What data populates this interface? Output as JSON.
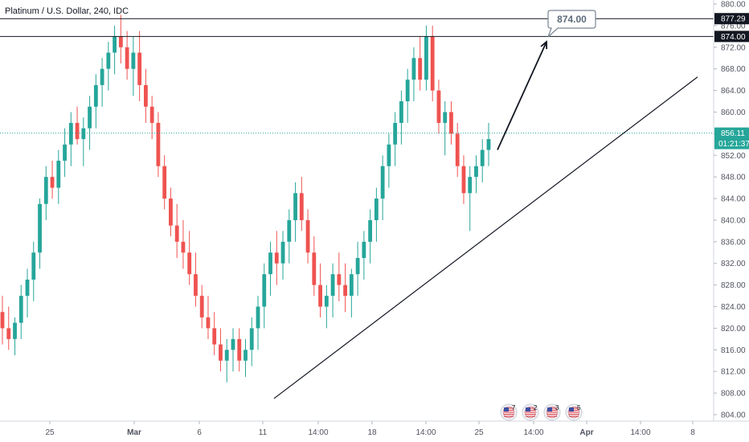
{
  "symbol": {
    "title": "Platinum / U.S. Dollar, 240, IDC"
  },
  "colors": {
    "up": "#26a69a",
    "down": "#ef5350",
    "price_line": "#26a69a",
    "annotation": "#6b7b8c"
  },
  "price_axis": {
    "ticks": [
      "880.00",
      "876.00",
      "872.00",
      "868.00",
      "864.00",
      "860.00",
      "856.00",
      "852.00",
      "848.00",
      "844.00",
      "840.00",
      "836.00",
      "832.00",
      "828.00",
      "824.00",
      "820.00",
      "816.00",
      "812.00",
      "808.00",
      "804.00"
    ],
    "current_price_label": "856.11",
    "countdown_label": "01:21:37",
    "level_labels": [
      "877.29",
      "874.00"
    ]
  },
  "time_axis": {
    "ticks": [
      "25",
      "Mar",
      "6",
      "11",
      "14:00",
      "18",
      "14:00",
      "25",
      "14:00",
      "Apr",
      "14:00",
      "8"
    ]
  },
  "annotation": {
    "target_label": "874.00"
  },
  "events": {
    "flags": [
      {
        "flag": "us-flag",
        "count": "7"
      },
      {
        "flag": "us-flag",
        "count": "2"
      },
      {
        "flag": "us-flag",
        "count": "3"
      },
      {
        "flag": "us-flag",
        "count": "5"
      }
    ]
  },
  "chart_data": {
    "type": "candlestick",
    "title": "Platinum / U.S. Dollar, 240, IDC",
    "ylim": [
      802,
      882
    ],
    "current_price": 856.11,
    "horizontal_levels": [
      877.29,
      874.0
    ],
    "trendline": {
      "from": 807,
      "to": 866.5
    },
    "arrow": {
      "from": 853,
      "to": 873
    },
    "candles": [
      [
        823,
        826,
        817,
        820
      ],
      [
        820,
        824,
        816,
        818
      ],
      [
        818,
        822,
        815,
        821
      ],
      [
        821,
        828,
        818,
        826
      ],
      [
        826,
        831,
        822,
        829
      ],
      [
        829,
        836,
        825,
        834
      ],
      [
        834,
        844,
        831,
        843
      ],
      [
        843,
        850,
        840,
        848
      ],
      [
        848,
        851,
        844,
        846
      ],
      [
        846,
        853,
        843,
        851
      ],
      [
        851,
        857,
        848,
        854
      ],
      [
        854,
        860,
        850,
        858
      ],
      [
        858,
        861,
        854,
        855
      ],
      [
        855,
        859,
        850,
        857
      ],
      [
        857,
        863,
        853,
        861
      ],
      [
        861,
        867,
        857,
        865
      ],
      [
        865,
        870,
        861,
        868
      ],
      [
        868,
        873,
        864,
        871
      ],
      [
        871,
        876,
        867,
        874
      ],
      [
        874,
        878,
        869,
        872
      ],
      [
        872,
        875,
        866,
        868
      ],
      [
        868,
        874,
        863,
        871
      ],
      [
        871,
        875,
        862,
        865
      ],
      [
        865,
        868,
        858,
        861
      ],
      [
        861,
        863,
        855,
        858
      ],
      [
        858,
        860,
        848,
        850
      ],
      [
        850,
        852,
        842,
        844
      ],
      [
        844,
        846,
        837,
        839
      ],
      [
        839,
        843,
        833,
        836
      ],
      [
        836,
        840,
        831,
        834
      ],
      [
        834,
        838,
        828,
        830
      ],
      [
        830,
        834,
        824,
        826
      ],
      [
        826,
        828,
        820,
        822
      ],
      [
        822,
        826,
        818,
        820
      ],
      [
        820,
        823,
        815,
        817
      ],
      [
        817,
        820,
        812,
        814
      ],
      [
        814,
        818,
        810,
        816
      ],
      [
        816,
        820,
        812,
        818
      ],
      [
        818,
        820,
        812,
        814
      ],
      [
        814,
        818,
        811,
        816
      ],
      [
        816,
        822,
        813,
        820
      ],
      [
        820,
        826,
        816,
        824
      ],
      [
        824,
        832,
        820,
        830
      ],
      [
        830,
        836,
        826,
        834
      ],
      [
        834,
        838,
        828,
        832
      ],
      [
        832,
        838,
        829,
        836
      ],
      [
        836,
        842,
        832,
        840
      ],
      [
        840,
        847,
        836,
        845
      ],
      [
        845,
        848,
        838,
        840
      ],
      [
        840,
        842,
        832,
        834
      ],
      [
        834,
        837,
        826,
        828
      ],
      [
        828,
        832,
        822,
        824
      ],
      [
        824,
        828,
        820,
        826
      ],
      [
        826,
        832,
        822,
        830
      ],
      [
        830,
        834,
        825,
        828
      ],
      [
        828,
        832,
        823,
        826
      ],
      [
        826,
        831,
        822,
        830
      ],
      [
        830,
        836,
        826,
        833
      ],
      [
        833,
        838,
        829,
        836
      ],
      [
        836,
        842,
        832,
        840
      ],
      [
        840,
        846,
        836,
        844
      ],
      [
        844,
        852,
        840,
        850
      ],
      [
        850,
        856,
        846,
        854
      ],
      [
        854,
        860,
        850,
        858
      ],
      [
        858,
        864,
        854,
        862
      ],
      [
        862,
        868,
        858,
        866
      ],
      [
        866,
        872,
        862,
        870
      ],
      [
        870,
        874,
        864,
        866
      ],
      [
        866,
        876,
        864,
        874
      ],
      [
        874,
        876,
        862,
        864
      ],
      [
        864,
        866,
        856,
        858
      ],
      [
        858,
        862,
        852,
        860
      ],
      [
        860,
        862,
        854,
        856
      ],
      [
        856,
        858,
        848,
        850
      ],
      [
        850,
        852,
        843,
        845
      ],
      [
        845,
        850,
        838,
        848
      ],
      [
        848,
        852,
        845,
        850
      ],
      [
        850,
        855,
        847,
        853
      ],
      [
        853,
        858,
        850,
        855
      ]
    ]
  }
}
